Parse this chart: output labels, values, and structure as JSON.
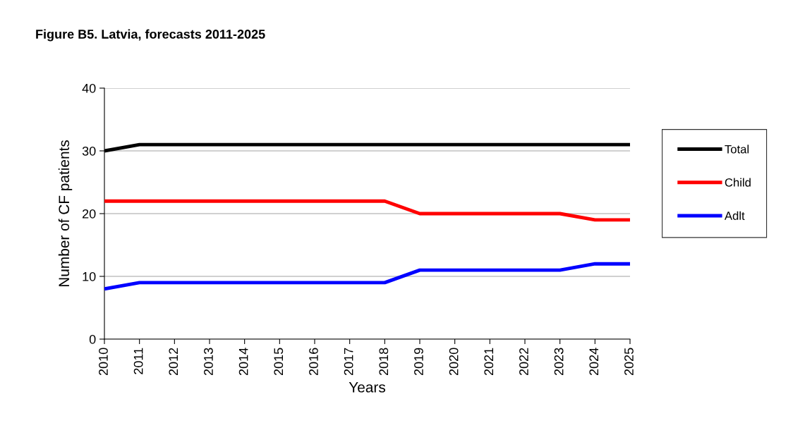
{
  "chart_data": {
    "type": "line",
    "title": "Figure B5. Latvia, forecasts 2011-2025",
    "xlabel": "Years",
    "ylabel": "Number of CF patients",
    "categories": [
      "2010",
      "2011",
      "2012",
      "2013",
      "2014",
      "2015",
      "2016",
      "2017",
      "2018",
      "2019",
      "2020",
      "2021",
      "2022",
      "2023",
      "2024",
      "2025"
    ],
    "series": [
      {
        "name": "Total",
        "color": "#000000",
        "values": [
          30,
          31,
          31,
          31,
          31,
          31,
          31,
          31,
          31,
          31,
          31,
          31,
          31,
          31,
          31,
          31
        ]
      },
      {
        "name": "Child",
        "color": "#ff0000",
        "values": [
          22,
          22,
          22,
          22,
          22,
          22,
          22,
          22,
          22,
          20,
          20,
          20,
          20,
          20,
          19,
          19
        ]
      },
      {
        "name": "Adlt",
        "color": "#0000ff",
        "values": [
          8,
          9,
          9,
          9,
          9,
          9,
          9,
          9,
          9,
          11,
          11,
          11,
          11,
          11,
          12,
          12
        ]
      }
    ],
    "ylim": [
      0,
      40
    ],
    "yticks": [
      0,
      10,
      20,
      30,
      40
    ],
    "grid": "y",
    "legend": "right",
    "marker": "none",
    "line_style": "solid"
  }
}
